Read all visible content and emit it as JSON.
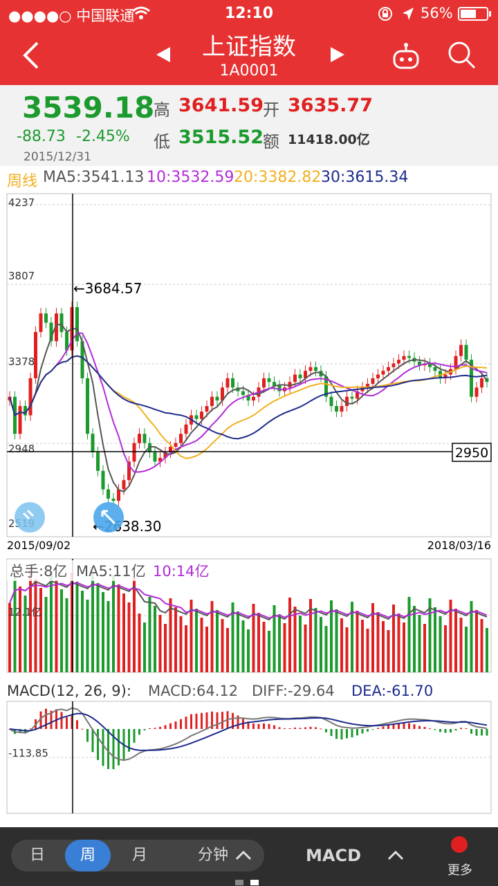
{
  "status": {
    "carrier": "●●●●○ 中国联通",
    "time": "12:10",
    "battery": "56%"
  },
  "nav": {
    "title": "上证指数",
    "code": "1A0001"
  },
  "quote": {
    "price": "3539.18",
    "change": "-88.73",
    "change_pct": "-2.45%",
    "date": "2015/12/31",
    "high_label": "高",
    "high": "3641.59",
    "open_label": "开",
    "open": "3635.77",
    "low_label": "低",
    "low": "3515.52",
    "amount_label": "额",
    "amount": "11418.00亿"
  },
  "legend": {
    "period": "周线",
    "ma5": "MA5:3541.13",
    "ma10": "10:3532.59",
    "ma20": "20:3382.82",
    "ma30": "30:3615.34"
  },
  "main_chart": {
    "y_ticks": [
      "4237",
      "3807",
      "3378",
      "2948",
      "2519"
    ],
    "start_date": "2015/09/02",
    "end_date": "2018/03/16",
    "max_label": "←3684.57",
    "min_label": "←2638.30",
    "crosshair_value": "2950"
  },
  "volume": {
    "label": "总手:8亿",
    "ma5": "MA5:11亿",
    "ma10": "10:14亿",
    "tick": "12.1亿"
  },
  "macd": {
    "title": "MACD(12, 26, 9):",
    "macd": "MACD:64.12",
    "diff": "DIFF:-29.64",
    "dea": "DEA:-61.70",
    "tick": "-113.85"
  },
  "bottom": {
    "tabs": [
      "日",
      "周",
      "月",
      "分钟"
    ],
    "active_tab": "周",
    "indicator": "MACD",
    "more": "更多"
  },
  "colors": {
    "brand_red": "#e63232",
    "up": "#e02020",
    "down": "#1b9a2d",
    "ma5": "#555555",
    "ma10": "#b22bd8",
    "ma20": "#f2b01e",
    "ma30": "#1c2a8c"
  }
}
